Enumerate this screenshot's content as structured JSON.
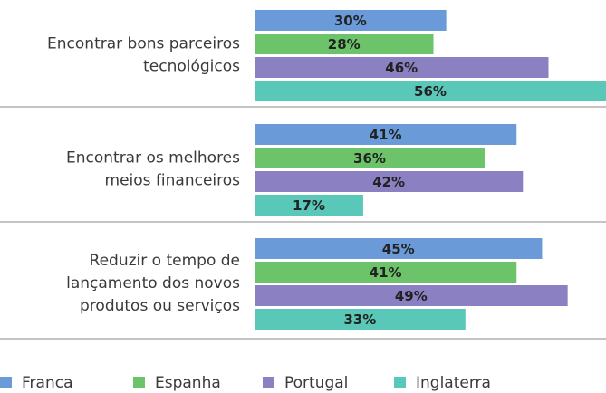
{
  "chart_data": {
    "type": "hbar",
    "categories": [
      [
        "Encontrar bons parceiros",
        "tecnológicos"
      ],
      [
        "Encontrar os melhores",
        "meios financeiros"
      ],
      [
        "Reduzir o tempo de",
        "lançamento dos novos",
        "produtos ou serviços"
      ]
    ],
    "series": [
      {
        "name": "Franca",
        "color": "#6a9bd8",
        "values": [
          30,
          41,
          45
        ],
        "value_labels": [
          "30%",
          "41%",
          "45%"
        ]
      },
      {
        "name": "Espanha",
        "color": "#6cc36a",
        "values": [
          28,
          36,
          41
        ],
        "value_labels": [
          "28%",
          "36%",
          "41%"
        ]
      },
      {
        "name": "Portugal",
        "color": "#8b80c1",
        "values": [
          46,
          42,
          49
        ],
        "value_labels": [
          "46%",
          "42%",
          "49%"
        ]
      },
      {
        "name": "Inglaterra",
        "color": "#5ac8b8",
        "values": [
          56,
          17,
          33
        ],
        "value_labels": [
          "56%",
          "17%",
          "33%"
        ]
      }
    ],
    "xlim": [
      0,
      55
    ]
  }
}
